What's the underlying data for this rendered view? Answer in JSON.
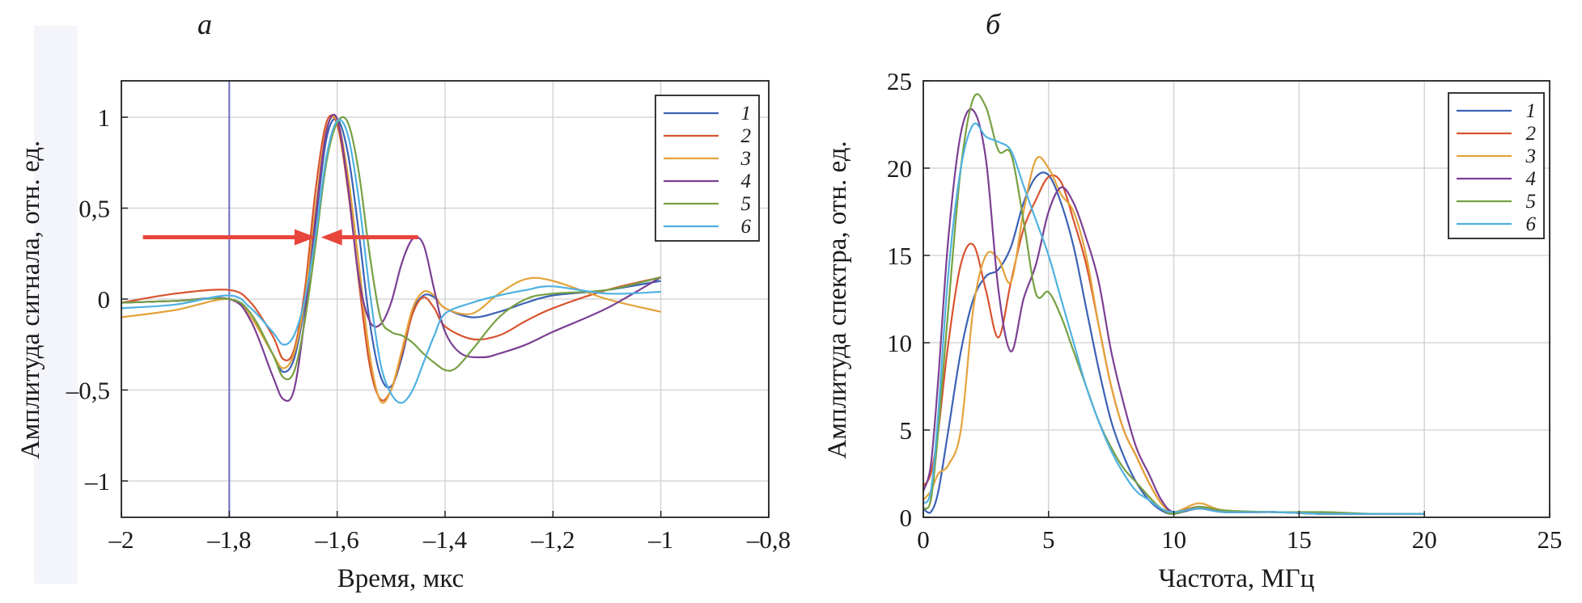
{
  "chart_data": [
    {
      "type": "line",
      "panel_label": "а",
      "title": "",
      "xlabel": "Время, мкс",
      "ylabel": "Амплитуда сигнала, отн. ед.",
      "xlim": [
        -2,
        -0.8
      ],
      "ylim": [
        -1.2,
        1.2
      ],
      "xticks": [
        -2,
        -1.8,
        -1.6,
        -1.4,
        -1.2,
        -1,
        -0.8
      ],
      "xtick_labels": [
        "–2",
        "–1,8",
        "–1,6",
        "–1,4",
        "–1,2",
        "–1",
        "–0,8"
      ],
      "yticks": [
        -1,
        -0.5,
        0,
        0.5,
        1
      ],
      "ytick_labels": [
        "–1",
        "–0,5",
        "0",
        "0,5",
        "1"
      ],
      "grid": true,
      "legend_position": "top-right",
      "vertical_line_x": -1.8,
      "annotations": [
        {
          "type": "arrow",
          "color": "#e8453c",
          "from": [
            -1.96,
            0.34
          ],
          "to": [
            -1.64,
            0.34
          ]
        },
        {
          "type": "arrow",
          "color": "#e8453c",
          "from": [
            -1.45,
            0.34
          ],
          "to": [
            -1.63,
            0.34
          ]
        }
      ],
      "series": [
        {
          "name": "1",
          "color": "#3b62b5",
          "x": [
            -2.0,
            -1.9,
            -1.8,
            -1.76,
            -1.72,
            -1.7,
            -1.68,
            -1.66,
            -1.64,
            -1.62,
            -1.6,
            -1.58,
            -1.56,
            -1.54,
            -1.52,
            -1.5,
            -1.48,
            -1.46,
            -1.44,
            -1.42,
            -1.4,
            -1.35,
            -1.3,
            -1.25,
            -1.2,
            -1.1,
            -1.0
          ],
          "y": [
            -0.02,
            -0.01,
            0.0,
            -0.08,
            -0.3,
            -0.4,
            -0.33,
            -0.03,
            0.42,
            0.88,
            0.99,
            0.8,
            0.37,
            -0.12,
            -0.42,
            -0.48,
            -0.32,
            -0.07,
            0.02,
            0.01,
            -0.05,
            -0.1,
            -0.07,
            -0.02,
            0.02,
            0.05,
            0.1
          ]
        },
        {
          "name": "2",
          "color": "#d8542f",
          "x": [
            -2.0,
            -1.9,
            -1.8,
            -1.76,
            -1.72,
            -1.7,
            -1.68,
            -1.66,
            -1.64,
            -1.62,
            -1.6,
            -1.58,
            -1.56,
            -1.54,
            -1.52,
            -1.5,
            -1.48,
            -1.46,
            -1.44,
            -1.42,
            -1.4,
            -1.35,
            -1.3,
            -1.25,
            -1.2,
            -1.1,
            -1.0
          ],
          "y": [
            -0.02,
            0.03,
            0.05,
            -0.02,
            -0.2,
            -0.33,
            -0.28,
            0.05,
            0.6,
            0.97,
            0.96,
            0.6,
            0.1,
            -0.36,
            -0.55,
            -0.5,
            -0.3,
            -0.08,
            0.01,
            -0.05,
            -0.15,
            -0.22,
            -0.2,
            -0.12,
            -0.05,
            0.05,
            0.12
          ]
        },
        {
          "name": "3",
          "color": "#e3a33b",
          "x": [
            -2.0,
            -1.9,
            -1.8,
            -1.76,
            -1.72,
            -1.7,
            -1.68,
            -1.66,
            -1.64,
            -1.62,
            -1.6,
            -1.58,
            -1.56,
            -1.54,
            -1.52,
            -1.5,
            -1.48,
            -1.46,
            -1.44,
            -1.42,
            -1.4,
            -1.35,
            -1.3,
            -1.25,
            -1.2,
            -1.1,
            -1.0
          ],
          "y": [
            -0.1,
            -0.06,
            0.0,
            -0.1,
            -0.3,
            -0.38,
            -0.3,
            0.0,
            0.5,
            0.93,
            0.98,
            0.68,
            0.2,
            -0.3,
            -0.56,
            -0.5,
            -0.28,
            -0.05,
            0.04,
            0.02,
            -0.05,
            -0.08,
            0.03,
            0.11,
            0.1,
            0.0,
            -0.07
          ]
        },
        {
          "name": "4",
          "color": "#7b3f93",
          "x": [
            -2.0,
            -1.9,
            -1.8,
            -1.76,
            -1.72,
            -1.7,
            -1.68,
            -1.66,
            -1.64,
            -1.62,
            -1.6,
            -1.58,
            -1.56,
            -1.54,
            -1.52,
            -1.5,
            -1.48,
            -1.46,
            -1.44,
            -1.42,
            -1.4,
            -1.37,
            -1.33,
            -1.3,
            -1.25,
            -1.2,
            -1.1,
            -1.0
          ],
          "y": [
            -0.02,
            -0.01,
            0.0,
            -0.12,
            -0.42,
            -0.55,
            -0.5,
            -0.1,
            0.45,
            0.92,
            0.99,
            0.62,
            0.12,
            -0.12,
            -0.14,
            -0.02,
            0.2,
            0.33,
            0.3,
            0.05,
            -0.18,
            -0.3,
            -0.32,
            -0.3,
            -0.25,
            -0.18,
            -0.05,
            0.12
          ]
        },
        {
          "name": "5",
          "color": "#77a043",
          "x": [
            -2.0,
            -1.9,
            -1.8,
            -1.76,
            -1.72,
            -1.7,
            -1.68,
            -1.66,
            -1.64,
            -1.62,
            -1.6,
            -1.58,
            -1.56,
            -1.54,
            -1.52,
            -1.5,
            -1.48,
            -1.46,
            -1.44,
            -1.42,
            -1.4,
            -1.38,
            -1.35,
            -1.3,
            -1.25,
            -1.2,
            -1.1,
            -1.0
          ],
          "y": [
            -0.02,
            -0.01,
            0.0,
            -0.08,
            -0.3,
            -0.43,
            -0.4,
            -0.12,
            0.3,
            0.75,
            0.97,
            0.97,
            0.7,
            0.25,
            -0.1,
            -0.18,
            -0.2,
            -0.24,
            -0.3,
            -0.35,
            -0.39,
            -0.38,
            -0.28,
            -0.1,
            0.0,
            0.03,
            0.05,
            0.12
          ]
        },
        {
          "name": "6",
          "color": "#4fb1e0",
          "x": [
            -2.0,
            -1.9,
            -1.8,
            -1.76,
            -1.72,
            -1.7,
            -1.68,
            -1.66,
            -1.64,
            -1.62,
            -1.6,
            -1.58,
            -1.56,
            -1.54,
            -1.52,
            -1.5,
            -1.48,
            -1.46,
            -1.44,
            -1.42,
            -1.4,
            -1.35,
            -1.3,
            -1.25,
            -1.2,
            -1.1,
            -1.0
          ],
          "y": [
            -0.05,
            -0.03,
            0.02,
            -0.05,
            -0.18,
            -0.25,
            -0.2,
            0.0,
            0.35,
            0.78,
            0.98,
            0.9,
            0.55,
            0.05,
            -0.35,
            -0.52,
            -0.57,
            -0.5,
            -0.35,
            -0.2,
            -0.08,
            -0.02,
            0.02,
            0.05,
            0.07,
            0.03,
            0.04
          ]
        }
      ]
    },
    {
      "type": "line",
      "panel_label": "б",
      "title": "",
      "xlabel": "Частота, МГц",
      "ylabel": "Амплитуда спектра, отн. ед.",
      "xlim": [
        0,
        25
      ],
      "ylim": [
        0,
        25
      ],
      "xticks": [
        0,
        5,
        10,
        15,
        20,
        25
      ],
      "xtick_labels": [
        "0",
        "5",
        "10",
        "15",
        "20",
        "25"
      ],
      "yticks": [
        0,
        5,
        10,
        15,
        20,
        25
      ],
      "ytick_labels": [
        "0",
        "5",
        "10",
        "15",
        "20",
        "25"
      ],
      "grid": true,
      "legend_position": "top-right",
      "series": [
        {
          "name": "1",
          "color": "#3b62b5",
          "x": [
            0.0,
            0.3,
            0.6,
            1.0,
            1.5,
            2.0,
            2.5,
            3.0,
            3.5,
            4.0,
            4.5,
            5.0,
            5.5,
            6.0,
            6.5,
            7.0,
            7.5,
            8.0,
            8.5,
            9.0,
            9.5,
            10.0,
            11.0,
            12.0,
            14.0,
            16.0,
            18.0,
            20.0
          ],
          "y": [
            0.5,
            0.3,
            1.5,
            5.0,
            9.5,
            12.5,
            13.8,
            14.2,
            15.5,
            18.0,
            19.5,
            19.6,
            18.0,
            15.5,
            12.0,
            8.5,
            5.5,
            3.5,
            2.0,
            1.0,
            0.4,
            0.2,
            0.5,
            0.3,
            0.3,
            0.2,
            0.2,
            0.2
          ]
        },
        {
          "name": "2",
          "color": "#d8542f",
          "x": [
            0.0,
            0.3,
            0.6,
            1.0,
            1.5,
            2.0,
            2.5,
            3.0,
            3.5,
            4.0,
            4.5,
            5.0,
            5.5,
            6.0,
            6.5,
            7.0,
            7.5,
            8.0,
            8.5,
            9.0,
            9.5,
            10.0,
            11.0,
            12.0,
            14.0,
            16.0,
            18.0,
            20.0
          ],
          "y": [
            1.8,
            2.5,
            5.0,
            10.0,
            14.5,
            15.6,
            13.0,
            10.3,
            13.5,
            16.5,
            18.2,
            19.5,
            19.2,
            17.0,
            14.5,
            11.0,
            7.5,
            5.0,
            3.5,
            2.0,
            0.8,
            0.3,
            0.6,
            0.3,
            0.3,
            0.2,
            0.2,
            0.2
          ]
        },
        {
          "name": "3",
          "color": "#e3a33b",
          "x": [
            0.0,
            0.3,
            0.6,
            1.0,
            1.5,
            2.0,
            2.5,
            3.0,
            3.5,
            4.0,
            4.5,
            5.0,
            5.5,
            6.0,
            6.5,
            7.0,
            7.5,
            8.0,
            8.5,
            9.0,
            9.5,
            10.0,
            11.0,
            12.0,
            14.0,
            16.0,
            18.0,
            20.0
          ],
          "y": [
            1.0,
            1.5,
            2.5,
            3.0,
            5.0,
            12.0,
            15.0,
            14.8,
            13.5,
            17.5,
            20.5,
            20.0,
            18.5,
            17.5,
            15.0,
            11.0,
            7.5,
            5.0,
            3.5,
            2.0,
            0.8,
            0.3,
            0.8,
            0.4,
            0.3,
            0.2,
            0.2,
            0.2
          ]
        },
        {
          "name": "4",
          "color": "#7b3f93",
          "x": [
            0.0,
            0.3,
            0.6,
            1.0,
            1.5,
            2.0,
            2.5,
            3.0,
            3.5,
            4.0,
            4.5,
            5.0,
            5.5,
            6.0,
            6.5,
            7.0,
            7.5,
            8.0,
            8.5,
            9.0,
            9.5,
            10.0,
            11.0,
            12.0,
            14.0,
            16.0,
            18.0,
            20.0
          ],
          "y": [
            1.5,
            3.0,
            8.0,
            16.0,
            22.0,
            23.3,
            20.5,
            13.0,
            9.5,
            12.5,
            14.5,
            17.5,
            18.9,
            18.0,
            16.0,
            13.5,
            9.5,
            6.5,
            4.0,
            2.5,
            1.0,
            0.3,
            0.5,
            0.3,
            0.3,
            0.2,
            0.2,
            0.2
          ]
        },
        {
          "name": "5",
          "color": "#77a043",
          "x": [
            0.0,
            0.3,
            0.6,
            1.0,
            1.5,
            2.0,
            2.5,
            3.0,
            3.5,
            4.0,
            4.5,
            5.0,
            5.5,
            6.0,
            6.5,
            7.0,
            7.5,
            8.0,
            8.5,
            9.0,
            9.5,
            10.0,
            11.0,
            12.0,
            14.0,
            16.0,
            18.0,
            20.0
          ],
          "y": [
            0.5,
            1.0,
            5.0,
            12.0,
            20.0,
            24.0,
            23.5,
            21.0,
            20.8,
            17.0,
            12.8,
            12.9,
            11.5,
            9.5,
            7.5,
            5.5,
            4.0,
            2.8,
            2.0,
            1.2,
            0.5,
            0.2,
            0.6,
            0.4,
            0.3,
            0.3,
            0.2,
            0.2
          ]
        },
        {
          "name": "6",
          "color": "#4fb1e0",
          "x": [
            0.0,
            0.3,
            0.6,
            1.0,
            1.5,
            2.0,
            2.5,
            3.0,
            3.5,
            4.0,
            4.5,
            5.0,
            5.5,
            6.0,
            6.5,
            7.0,
            7.5,
            8.0,
            8.5,
            9.0,
            9.5,
            10.0,
            11.0,
            12.0,
            14.0,
            16.0,
            18.0,
            20.0
          ],
          "y": [
            0.8,
            1.5,
            6.0,
            14.0,
            20.0,
            22.5,
            21.8,
            21.5,
            21.0,
            19.0,
            17.0,
            15.0,
            12.5,
            10.0,
            7.5,
            5.5,
            3.8,
            2.5,
            1.5,
            1.0,
            0.5,
            0.3,
            0.5,
            0.3,
            0.3,
            0.2,
            0.2,
            0.2
          ]
        }
      ]
    }
  ]
}
